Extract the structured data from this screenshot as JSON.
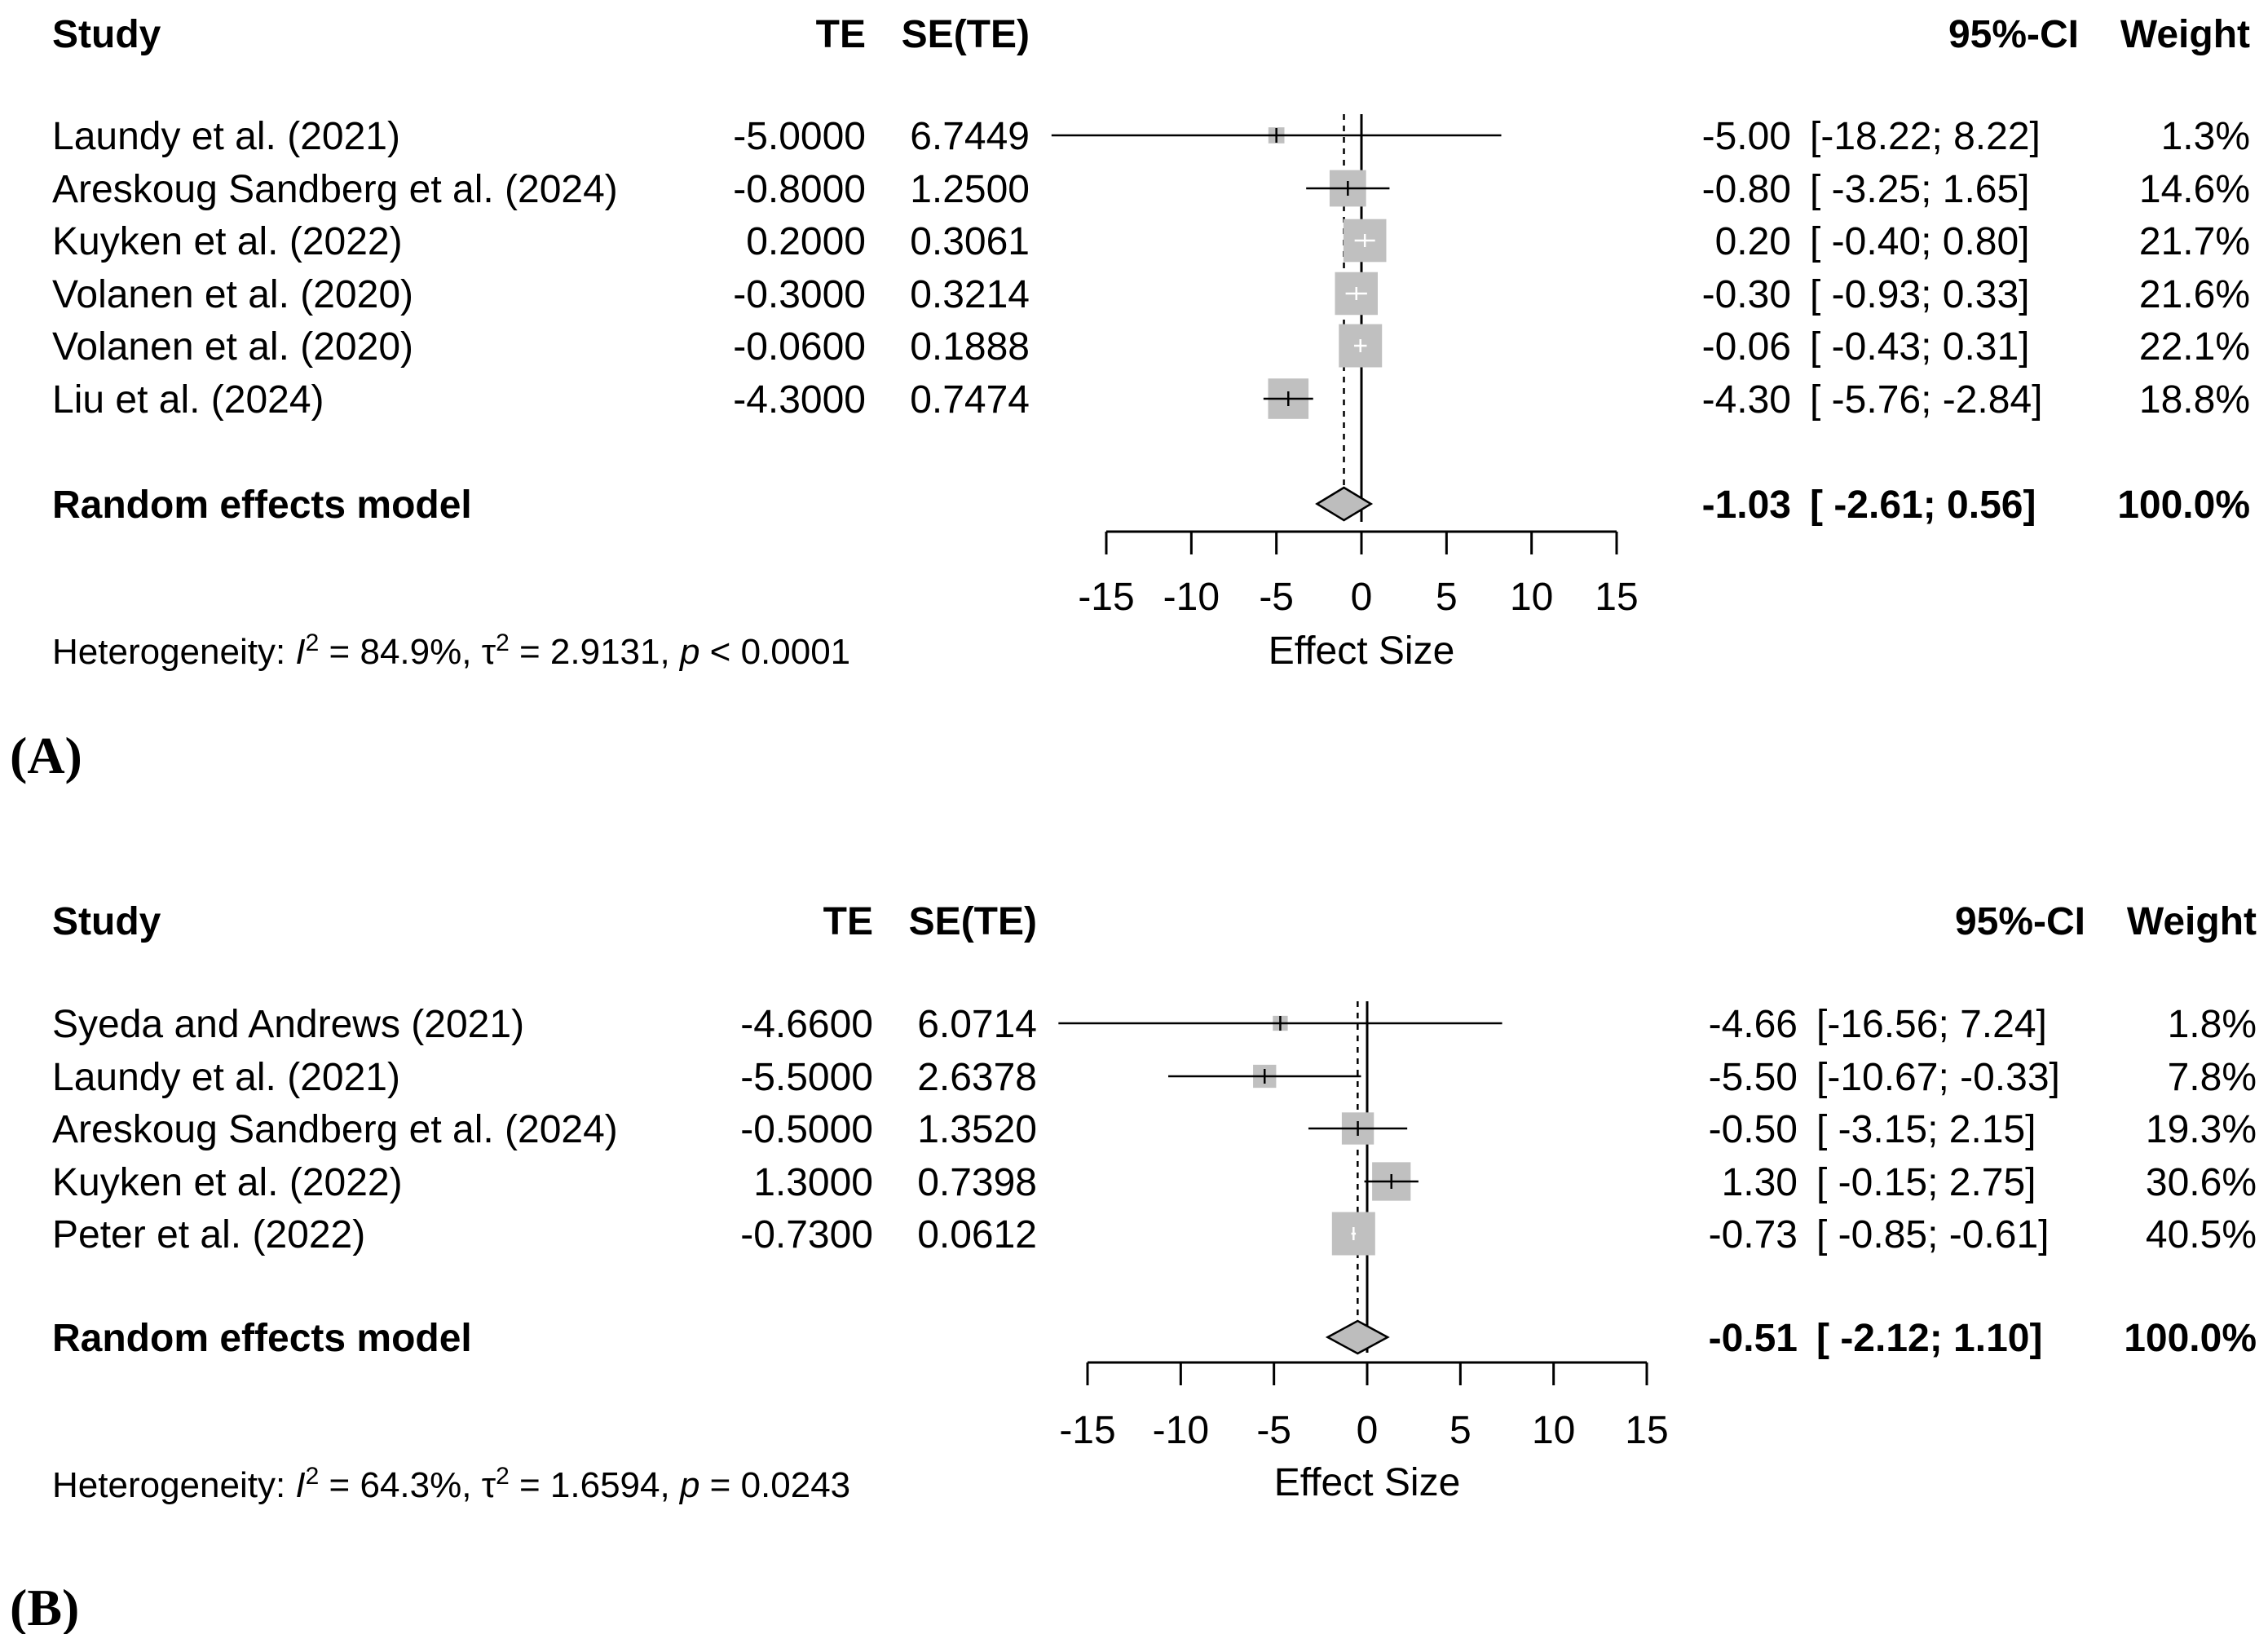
{
  "chart_data": [
    {
      "type": "forest",
      "panel_label": "(A)",
      "headers": {
        "study": "Study",
        "te": "TE",
        "se": "SE(TE)",
        "ci": "95%-CI",
        "weight": "Weight"
      },
      "studies": [
        {
          "name": "Laundy et al. (2021)",
          "te_text": "-5.0000",
          "se_text": "6.7449",
          "est": -5.0,
          "lower": -18.22,
          "upper": 8.22,
          "est_text": "-5.00",
          "ci_text": "[-18.22;  8.22]",
          "weight": 1.3,
          "weight_text": "1.3%"
        },
        {
          "name": "Areskoug  Sandberg et al. (2024)",
          "te_text": "-0.8000",
          "se_text": "1.2500",
          "est": -0.8,
          "lower": -3.25,
          "upper": 1.65,
          "est_text": "-0.80",
          "ci_text": "[ -3.25;  1.65]",
          "weight": 14.6,
          "weight_text": "14.6%"
        },
        {
          "name": "Kuyken et al. (2022)",
          "te_text": "0.2000",
          "se_text": "0.3061",
          "est": 0.2,
          "lower": -0.4,
          "upper": 0.8,
          "est_text": "0.20",
          "ci_text": "[ -0.40;  0.80]",
          "weight": 21.7,
          "weight_text": "21.7%"
        },
        {
          "name": "Volanen  et al. (2020)",
          "te_text": "-0.3000",
          "se_text": "0.3214",
          "est": -0.3,
          "lower": -0.93,
          "upper": 0.33,
          "est_text": "-0.30",
          "ci_text": "[ -0.93;  0.33]",
          "weight": 21.6,
          "weight_text": "21.6%"
        },
        {
          "name": "Volanen  et al. (2020)",
          "te_text": "-0.0600",
          "se_text": "0.1888",
          "est": -0.06,
          "lower": -0.43,
          "upper": 0.31,
          "est_text": "-0.06",
          "ci_text": "[ -0.43;  0.31]",
          "weight": 22.1,
          "weight_text": "22.1%"
        },
        {
          "name": "Liu  et al. (2024)",
          "te_text": "-4.3000",
          "se_text": "0.7474",
          "est": -4.3,
          "lower": -5.76,
          "upper": -2.84,
          "est_text": "-4.30",
          "ci_text": "[ -5.76; -2.84]",
          "weight": 18.8,
          "weight_text": "18.8%"
        }
      ],
      "pooled": {
        "name": "Random effects model",
        "est": -1.03,
        "lower": -2.61,
        "upper": 0.56,
        "est_text": "-1.03",
        "ci_text": "[ -2.61;  0.56]",
        "weight_text": "100.0%"
      },
      "xaxis": {
        "label": "Effect Size",
        "min": -15,
        "max": 15,
        "ticks": [
          -15,
          -10,
          -5,
          0,
          5,
          10,
          15
        ],
        "tick_labels": [
          "-15",
          "-10",
          "-5",
          "0",
          "5",
          "10",
          "15"
        ]
      },
      "heterogeneity": {
        "prefix": "Heterogeneity: ",
        "i2": "I",
        "i2_value": " = 84.9%, ",
        "tau": "τ",
        "tau_value": " = 2.9131, ",
        "p": "p",
        "p_value": " < 0.0001",
        "sup": "2"
      }
    },
    {
      "type": "forest",
      "panel_label": "(B)",
      "headers": {
        "study": "Study",
        "te": "TE",
        "se": "SE(TE)",
        "ci": "95%-CI",
        "weight": "Weight"
      },
      "studies": [
        {
          "name": "Syeda and Andrews (2021)",
          "te_text": "-4.6600",
          "se_text": "6.0714",
          "est": -4.66,
          "lower": -16.56,
          "upper": 7.24,
          "est_text": "-4.66",
          "ci_text": "[-16.56;  7.24]",
          "weight": 1.8,
          "weight_text": "1.8%"
        },
        {
          "name": "Laundy et al. (2021)",
          "te_text": "-5.5000",
          "se_text": "2.6378",
          "est": -5.5,
          "lower": -10.67,
          "upper": -0.33,
          "est_text": "-5.50",
          "ci_text": "[-10.67; -0.33]",
          "weight": 7.8,
          "weight_text": "7.8%"
        },
        {
          "name": "Areskoug  Sandberg  et al. (2024)",
          "te_text": "-0.5000",
          "se_text": "1.3520",
          "est": -0.5,
          "lower": -3.15,
          "upper": 2.15,
          "est_text": "-0.50",
          "ci_text": "[ -3.15;  2.15]",
          "weight": 19.3,
          "weight_text": "19.3%"
        },
        {
          "name": "Kuyken et al. (2022)",
          "te_text": "1.3000",
          "se_text": "0.7398",
          "est": 1.3,
          "lower": -0.15,
          "upper": 2.75,
          "est_text": "1.30",
          "ci_text": "[ -0.15;  2.75]",
          "weight": 30.6,
          "weight_text": "30.6%"
        },
        {
          "name": "Peter et al. (2022)",
          "te_text": "-0.7300",
          "se_text": "0.0612",
          "est": -0.73,
          "lower": -0.85,
          "upper": -0.61,
          "est_text": "-0.73",
          "ci_text": "[ -0.85; -0.61]",
          "weight": 40.5,
          "weight_text": "40.5%"
        }
      ],
      "pooled": {
        "name": "Random effects model",
        "est": -0.51,
        "lower": -2.12,
        "upper": 1.1,
        "est_text": "-0.51",
        "ci_text": "[ -2.12;  1.10]",
        "weight_text": "100.0%"
      },
      "xaxis": {
        "label": "Effect Size",
        "min": -15,
        "max": 15,
        "ticks": [
          -15,
          -10,
          -5,
          0,
          5,
          10,
          15
        ],
        "tick_labels": [
          "-15",
          "-10",
          "-5",
          "0",
          "5",
          "10",
          "15"
        ]
      },
      "heterogeneity": {
        "prefix": "Heterogeneity: ",
        "i2": "I",
        "i2_value": " = 64.3%, ",
        "tau": "τ",
        "tau_value": " = 1.6594, ",
        "p": "p",
        "p_value": " = 0.0243",
        "sup": "2"
      }
    }
  ],
  "colors": {
    "box": "#c0c0c0",
    "diamond": "#bdbdbd",
    "ink": "#000000",
    "whisker_in_box": "#ffffff"
  }
}
